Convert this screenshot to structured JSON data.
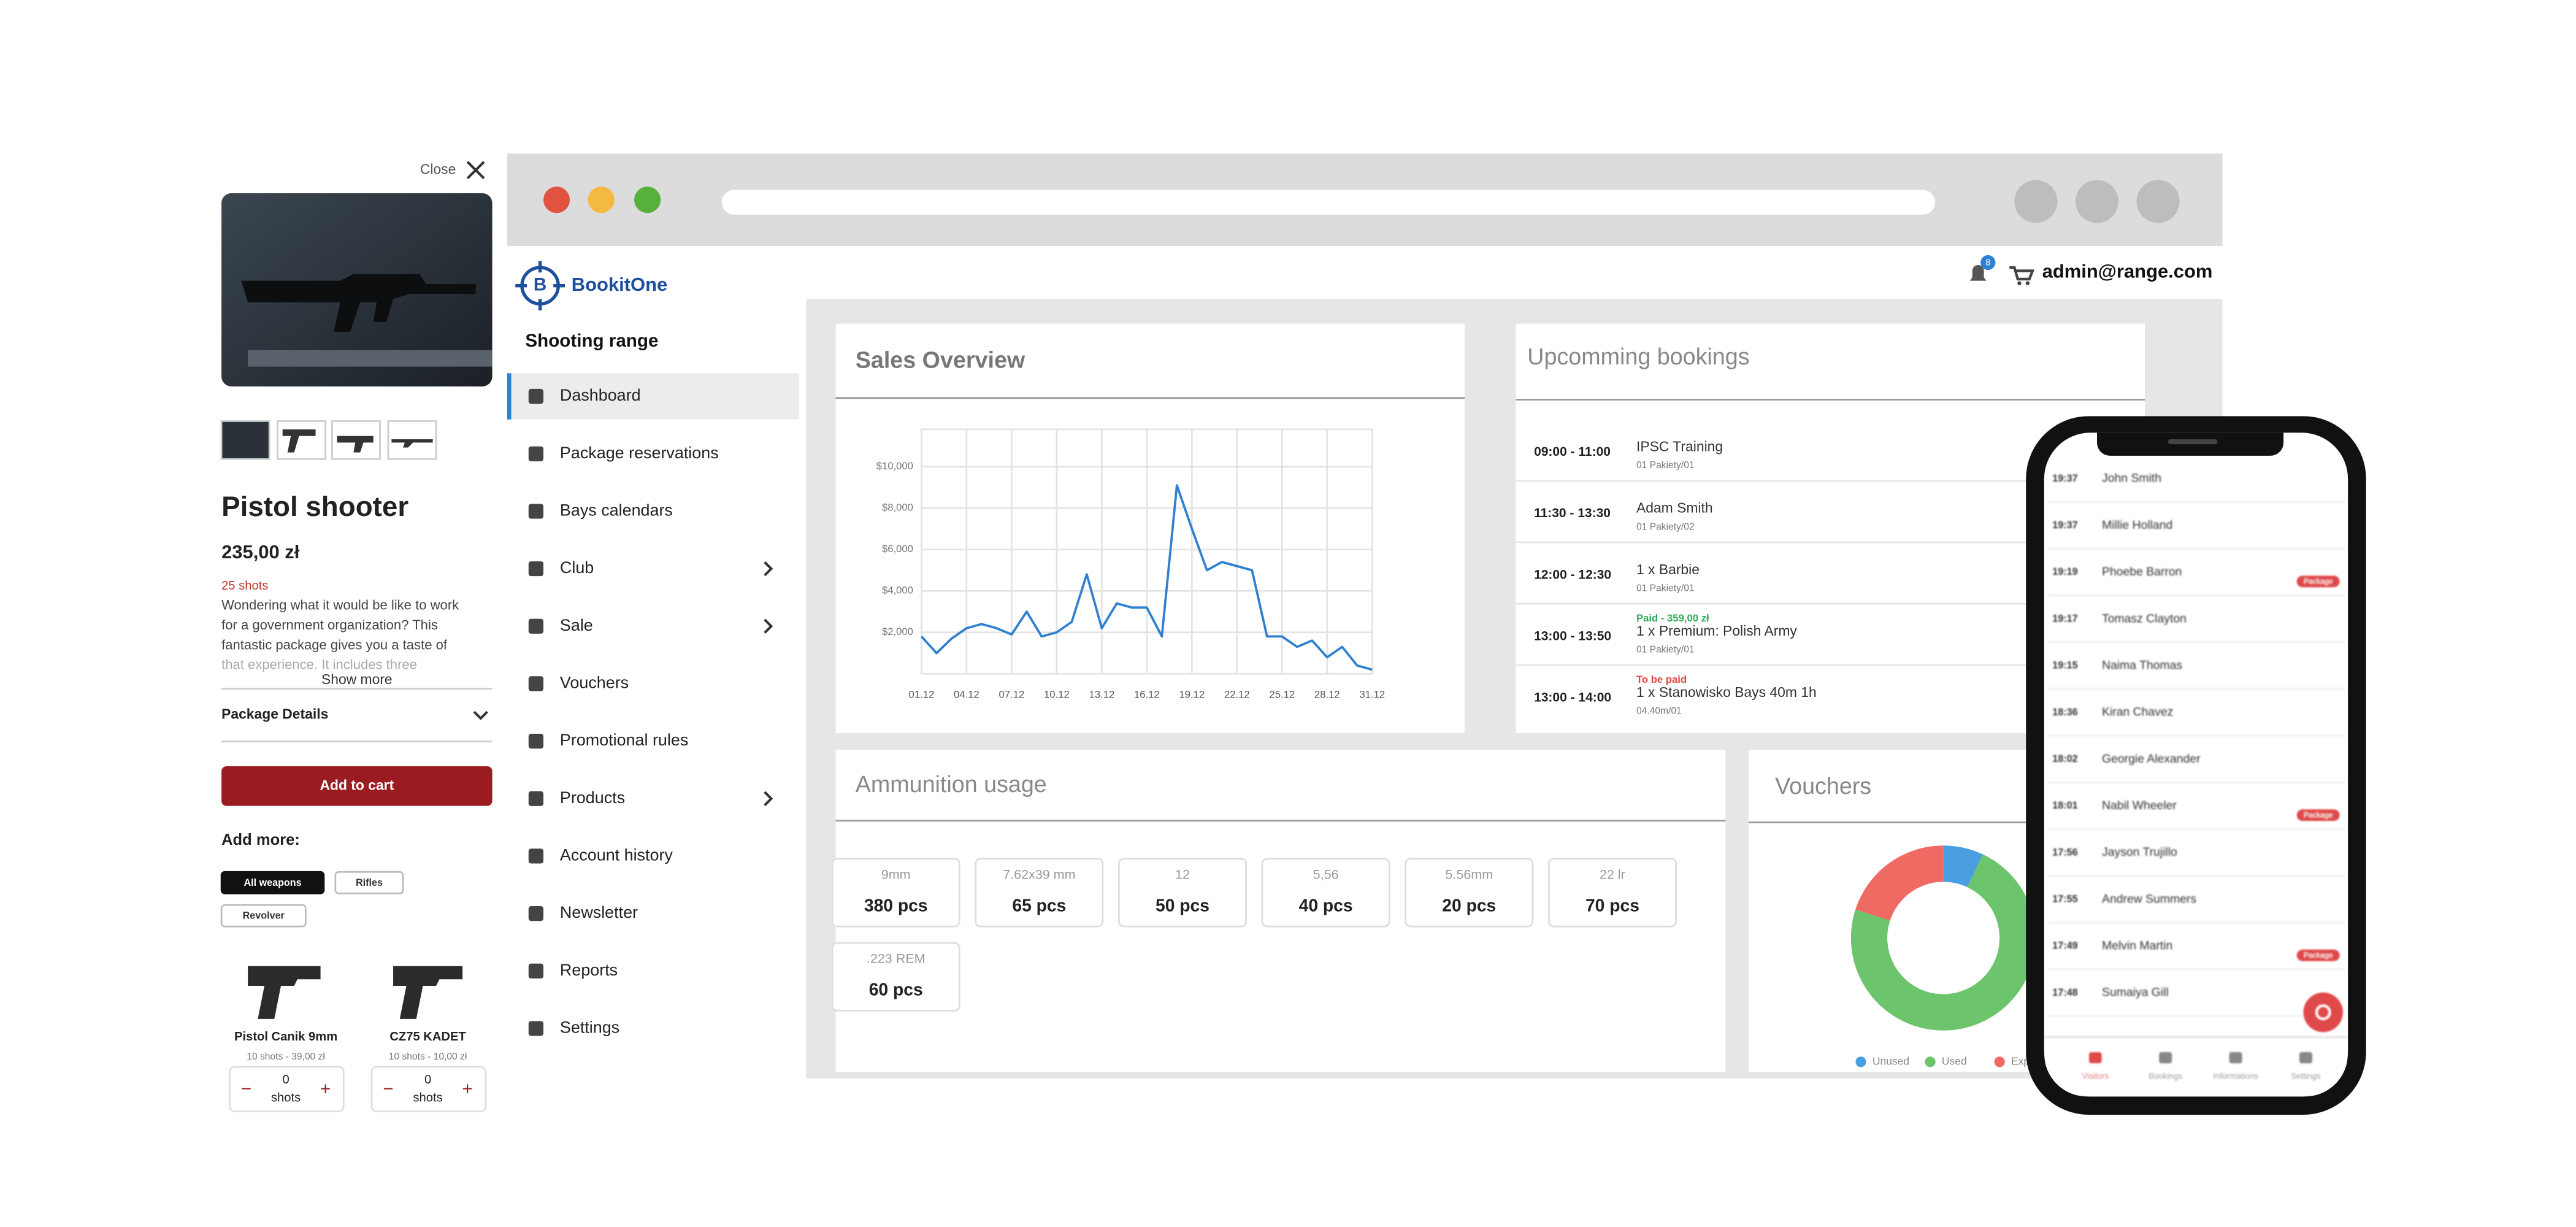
{
  "product_panel": {
    "close": "Close",
    "title": "Pistol shooter",
    "price": "235,00 zł",
    "shots": "25 shots",
    "description": [
      "Wondering what it would be like to work",
      "for a government organization? This",
      "fantastic package gives you a taste of",
      "that experience. It includes three"
    ],
    "show_more": "Show more",
    "details": "Package Details",
    "add_to_cart": "Add to cart",
    "add_more": "Add more:",
    "filters": [
      "All weapons",
      "Rifles",
      "Revolver"
    ],
    "items": [
      {
        "name": "Pistol Canik 9mm",
        "sub": "10 shots - 39,00 zł",
        "qty": "0",
        "unit": "shots"
      },
      {
        "name": "CZ75 KADET",
        "sub": "10 shots - 10,00 zł",
        "qty": "0",
        "unit": "shots"
      }
    ]
  },
  "header": {
    "user": "admin@range.com",
    "notifications": "8"
  },
  "sidebar": {
    "brand": "BookitOne",
    "section": "Shooting range",
    "items": [
      {
        "label": "Dashboard",
        "active": true
      },
      {
        "label": "Package reservations"
      },
      {
        "label": "Bays calendars"
      },
      {
        "label": "Club",
        "has_submenu": true
      },
      {
        "label": "Sale",
        "has_submenu": true
      },
      {
        "label": "Vouchers"
      },
      {
        "label": "Promotional rules"
      },
      {
        "label": "Products",
        "has_submenu": true
      },
      {
        "label": "Account history"
      },
      {
        "label": "Newsletter"
      },
      {
        "label": "Reports"
      },
      {
        "label": "Settings"
      }
    ]
  },
  "dashboard": {
    "sales": {
      "type": "line",
      "title": "Sales Overview",
      "color": "#2f80d0",
      "categories": [
        "01.12",
        null,
        null,
        "04.12",
        null,
        null,
        "07.12",
        null,
        null,
        "10.12",
        null,
        null,
        "13.12",
        null,
        null,
        "16.12",
        null,
        null,
        "19.12",
        null,
        null,
        "22.12",
        null,
        null,
        "25.12",
        null,
        null,
        "28.12",
        null,
        null,
        "31.12"
      ],
      "values": [
        1800,
        1000,
        1700,
        2200,
        2400,
        2200,
        1900,
        3000,
        1800,
        2000,
        2500,
        4800,
        2200,
        3400,
        3200,
        3200,
        1800,
        9100,
        7000,
        5000,
        5400,
        5200,
        5000,
        1800,
        1800,
        1300,
        1600,
        800,
        1300,
        400,
        200
      ],
      "ylim": [
        0,
        11800
      ],
      "yticks": [
        {
          "value": 2000,
          "label": "$2,000"
        },
        {
          "value": 4000,
          "label": "$4,000"
        },
        {
          "value": 6000,
          "label": "$6,000"
        },
        {
          "value": 8000,
          "label": "$8,000"
        },
        {
          "value": 10000,
          "label": "$10,000"
        }
      ],
      "grid": true
    },
    "bookings": {
      "title": "Upcomming bookings",
      "rows": [
        {
          "time": "09:00 - 11:00",
          "name": "IPSC Training",
          "sub": "01 Pakiety/01"
        },
        {
          "time": "11:30 - 13:30",
          "name": "Adam Smith",
          "sub": "01 Pakiety/02"
        },
        {
          "time": "12:00 - 12:30",
          "name": "1 x Barbie",
          "sub": "01 Pakiety/01"
        },
        {
          "time": "13:00 - 13:50",
          "status": "Paid - 359,00 zł",
          "status_color": "#2eaa5c",
          "name": "1 x Premium: Polish Army",
          "sub": "01 Pakiety/01"
        },
        {
          "time": "13:00 - 14:00",
          "status": "To be paid",
          "status_color": "#e04848",
          "name": "1 x Stanowisko Bays 40m 1h",
          "sub": "04.40m/01"
        }
      ]
    },
    "ammo": {
      "title": "Ammunition usage",
      "items": [
        {
          "caliber": "9mm",
          "amount": "380 pcs"
        },
        {
          "caliber": "7.62x39 mm",
          "amount": "65 pcs"
        },
        {
          "caliber": "12",
          "amount": "50 pcs"
        },
        {
          "caliber": "5,56",
          "amount": "40 pcs"
        },
        {
          "caliber": "5.56mm",
          "amount": "20 pcs"
        },
        {
          "caliber": "22 lr",
          "amount": "70 pcs"
        },
        {
          "caliber": ".223 REM",
          "amount": "60 pcs"
        }
      ]
    },
    "vouchers": {
      "type": "pie",
      "title": "Vouchers",
      "categories": [
        "Unused",
        "Used",
        "Expired"
      ],
      "values": [
        7,
        73,
        20
      ],
      "colors": [
        "#4a9fe0",
        "#6cc46c",
        "#ee6a62"
      ]
    }
  },
  "phone": {
    "rows": [
      {
        "time": "19:37",
        "name": "John Smith"
      },
      {
        "time": "19:37",
        "name": "Millie Holland"
      },
      {
        "time": "19:19",
        "name": "Phoebe Barron",
        "badge": "Package"
      },
      {
        "time": "19:17",
        "name": "Tomasz Clayton"
      },
      {
        "time": "19:15",
        "name": "Naima Thomas"
      },
      {
        "time": "18:36",
        "name": "Kiran Chavez"
      },
      {
        "time": "18:02",
        "name": "Georgie Alexander"
      },
      {
        "time": "18:01",
        "name": "Nabil Wheeler",
        "badge": "Package"
      },
      {
        "time": "17:56",
        "name": "Jayson Trujillo"
      },
      {
        "time": "17:55",
        "name": "Andrew Summers"
      },
      {
        "time": "17:49",
        "name": "Melvin Martin",
        "badge": "Package"
      },
      {
        "time": "17:48",
        "name": "Sumaiya Gill"
      }
    ],
    "tabs": [
      "Visitors",
      "Bookings",
      "Informations",
      "Settings"
    ]
  }
}
